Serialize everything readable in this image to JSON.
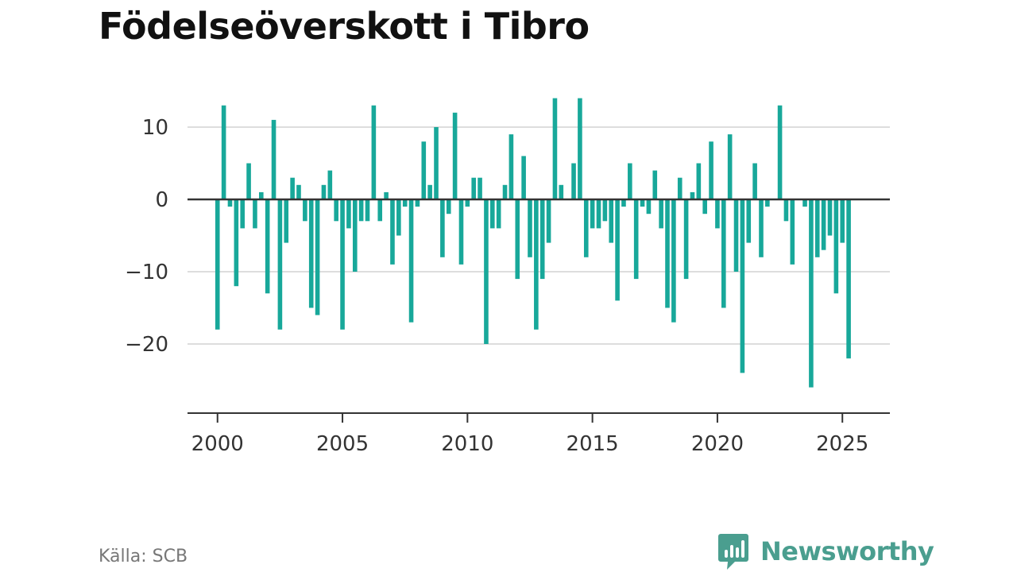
{
  "header": {
    "title": "Födelseöverskott i Tibro"
  },
  "footer": {
    "source": "Källa: SCB",
    "brand": "Newsworthy"
  },
  "colors": {
    "bar": "#18a89a",
    "grid": "#dddddd",
    "axis": "#333333",
    "brand": "#4a9e8f"
  },
  "icons": {
    "brand": "bar-chart-speech-bubble-icon"
  },
  "chart_data": {
    "type": "bar",
    "title": "Födelseöverskott i Tibro",
    "xlabel": "",
    "ylabel": "",
    "x_ticks": [
      "2000",
      "2005",
      "2010",
      "2015",
      "2020",
      "2025"
    ],
    "y_ticks": [
      "10",
      "0",
      "−10",
      "−20"
    ],
    "ylim": [
      -30,
      14
    ],
    "xlim": [
      1998.8,
      2026.9
    ],
    "grid": true,
    "legend": "none",
    "series": [
      {
        "x": [
          "2000-Q1",
          "2000-Q2",
          "2000-Q3",
          "2000-Q4",
          "2001-Q1",
          "2001-Q2",
          "2001-Q3",
          "2001-Q4",
          "2002-Q1",
          "2002-Q2",
          "2002-Q3",
          "2002-Q4",
          "2003-Q1",
          "2003-Q2",
          "2003-Q3",
          "2003-Q4",
          "2004-Q1",
          "2004-Q2",
          "2004-Q3",
          "2004-Q4",
          "2005-Q1",
          "2005-Q2",
          "2005-Q3",
          "2005-Q4",
          "2006-Q1",
          "2006-Q2",
          "2006-Q3",
          "2006-Q4",
          "2007-Q1",
          "2007-Q2",
          "2007-Q3",
          "2007-Q4",
          "2008-Q1",
          "2008-Q2",
          "2008-Q3",
          "2008-Q4",
          "2009-Q1",
          "2009-Q2",
          "2009-Q3",
          "2009-Q4",
          "2010-Q1",
          "2010-Q2",
          "2010-Q3",
          "2010-Q4",
          "2011-Q1",
          "2011-Q2",
          "2011-Q3",
          "2011-Q4",
          "2012-Q1",
          "2012-Q2",
          "2012-Q3",
          "2012-Q4",
          "2013-Q1",
          "2013-Q2",
          "2013-Q3",
          "2013-Q4",
          "2014-Q1",
          "2014-Q2",
          "2014-Q3",
          "2014-Q4",
          "2015-Q1",
          "2015-Q2",
          "2015-Q3",
          "2015-Q4",
          "2016-Q1",
          "2016-Q2",
          "2016-Q3",
          "2016-Q4",
          "2017-Q1",
          "2017-Q2",
          "2017-Q3",
          "2017-Q4",
          "2018-Q1",
          "2018-Q2",
          "2018-Q3",
          "2018-Q4",
          "2019-Q1",
          "2019-Q2",
          "2019-Q3",
          "2019-Q4",
          "2020-Q1",
          "2020-Q2",
          "2020-Q3",
          "2020-Q4",
          "2021-Q1",
          "2021-Q2",
          "2021-Q3",
          "2021-Q4",
          "2022-Q1",
          "2022-Q2",
          "2022-Q3",
          "2022-Q4",
          "2023-Q1",
          "2023-Q2",
          "2023-Q3",
          "2023-Q4",
          "2024-Q1",
          "2024-Q2",
          "2024-Q3",
          "2024-Q4",
          "2025-Q1",
          "2025-Q2"
        ],
        "values": [
          -18,
          13,
          -1,
          -12,
          -4,
          5,
          -4,
          1,
          -13,
          11,
          -18,
          -6,
          3,
          2,
          -3,
          -15,
          -16,
          2,
          4,
          -3,
          -18,
          -4,
          -10,
          -3,
          -3,
          13,
          -3,
          1,
          -9,
          -5,
          -1,
          -17,
          -1,
          8,
          2,
          10,
          -8,
          -2,
          12,
          -9,
          -1,
          3,
          3,
          -20,
          -4,
          -4,
          2,
          9,
          -11,
          6,
          -8,
          -18,
          -11,
          -6,
          14,
          2,
          0,
          5,
          14,
          -8,
          -4,
          -4,
          -3,
          -6,
          -14,
          -1,
          5,
          -11,
          -1,
          -2,
          4,
          -4,
          -15,
          -17,
          3,
          -11,
          1,
          5,
          -2,
          8,
          -4,
          -15,
          9,
          -10,
          -24,
          -6,
          5,
          -8,
          -1,
          0,
          13,
          -3,
          -9,
          0,
          -1,
          -26,
          -8,
          -7,
          -5,
          -13,
          -6,
          -22
        ]
      }
    ]
  }
}
